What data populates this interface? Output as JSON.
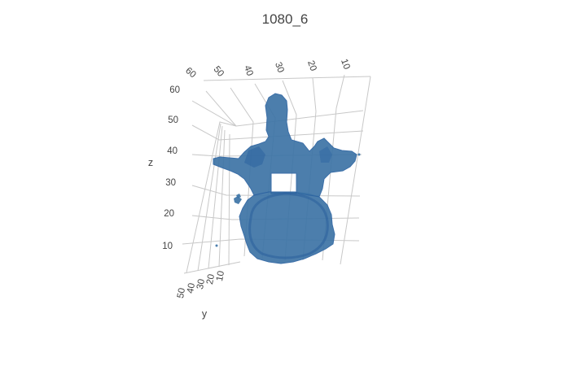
{
  "chart_data": {
    "type": "3d-surface",
    "title": "1080_6",
    "mesh_color": "#3d74a6",
    "mesh_dark_color": "#2c63a1",
    "axes": {
      "x": {
        "title": "",
        "ticks": [
          "10",
          "20",
          "30",
          "40",
          "50",
          "60"
        ]
      },
      "y": {
        "title": "y",
        "ticks": [
          "10",
          "20",
          "30",
          "40",
          "50"
        ]
      },
      "z": {
        "title": "z",
        "ticks": [
          "10",
          "20",
          "30",
          "40",
          "50",
          "60"
        ]
      }
    },
    "grid": true,
    "legend": "none"
  }
}
